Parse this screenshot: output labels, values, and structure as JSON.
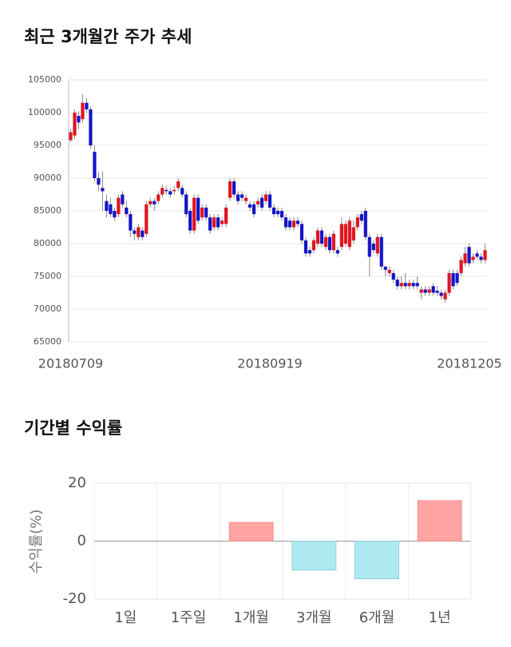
{
  "chart_data": [
    {
      "type": "candlestick",
      "title": "최근 3개월간 주가 추세",
      "categories": [
        "20180709",
        null,
        null,
        null,
        null,
        null,
        null,
        null,
        null,
        null,
        null,
        null,
        null,
        null,
        null,
        null,
        null,
        null,
        null,
        null,
        null,
        null,
        null,
        null,
        null,
        null,
        null,
        null,
        null,
        null,
        null,
        null,
        null,
        null,
        null,
        null,
        null,
        null,
        null,
        null,
        null,
        null,
        null,
        null,
        null,
        null,
        null,
        null,
        null,
        null,
        "20180919",
        null,
        null,
        null,
        null,
        null,
        null,
        null,
        null,
        null,
        null,
        null,
        null,
        null,
        null,
        null,
        null,
        null,
        null,
        null,
        null,
        null,
        null,
        null,
        null,
        null,
        null,
        null,
        null,
        null,
        null,
        null,
        null,
        null,
        null,
        null,
        null,
        null,
        null,
        null,
        null,
        null,
        null,
        null,
        null,
        null,
        null,
        null,
        null,
        null,
        null,
        null,
        null,
        null,
        "20181205"
      ],
      "open": [
        95800,
        96500,
        99500,
        99000,
        101500,
        100500,
        94000,
        90000,
        88500,
        86500,
        86000,
        85000,
        84500,
        87500,
        85500,
        84500,
        82000,
        81000,
        82000,
        81500,
        86000,
        86500,
        86500,
        87500,
        88200,
        88000,
        88000,
        88500,
        88500,
        87500,
        85000,
        82000,
        87000,
        84000,
        85500,
        84000,
        82500,
        84000,
        83000,
        83000,
        87000,
        89500,
        87500,
        87500,
        86500,
        86000,
        86000,
        86000,
        87000,
        86500,
        87500,
        85500,
        85000,
        85000,
        84000,
        83500,
        82500,
        83500,
        83000,
        80500,
        79000,
        79000,
        80000,
        82000,
        79500,
        81000,
        79000,
        79000,
        79500,
        80000,
        79500,
        80500,
        82500,
        84500,
        85000,
        81000,
        80000,
        78500,
        81000,
        76500,
        75500,
        75500,
        74500,
        73500,
        74000,
        73500,
        74000,
        74000,
        72500,
        73000,
        72500,
        73500,
        72800,
        72500,
        71500,
        72500,
        75500,
        75500,
        75500,
        77000,
        79500,
        77500,
        78500,
        78000,
        77500
      ],
      "high": [
        97500,
        100500,
        100200,
        102800,
        102200,
        101000,
        95000,
        91000,
        91000,
        87500,
        87000,
        85500,
        87500,
        88000,
        86500,
        85000,
        82500,
        83000,
        82500,
        86500,
        87000,
        87000,
        88000,
        89000,
        88800,
        88500,
        88800,
        90000,
        89000,
        88000,
        85500,
        87500,
        87500,
        86000,
        86000,
        84500,
        84500,
        84500,
        84000,
        86000,
        90000,
        90000,
        88000,
        88000,
        87500,
        86500,
        86500,
        87000,
        87500,
        88000,
        88000,
        86000,
        85500,
        85500,
        84500,
        84000,
        84000,
        84000,
        83500,
        81000,
        79500,
        81000,
        82500,
        82500,
        81500,
        81500,
        82000,
        79500,
        84000,
        83500,
        84000,
        83500,
        84500,
        85000,
        85500,
        81500,
        80500,
        81500,
        81500,
        76500,
        76500,
        76000,
        75000,
        75000,
        75500,
        74500,
        74500,
        75000,
        73500,
        73500,
        73500,
        74000,
        73500,
        73000,
        73000,
        76000,
        76000,
        76000,
        78000,
        79500,
        80000,
        78500,
        79000,
        78500,
        80000
      ],
      "low": [
        95500,
        96000,
        97500,
        98500,
        100000,
        94500,
        89500,
        88000,
        85000,
        84000,
        84000,
        83500,
        84000,
        85500,
        84000,
        81000,
        80500,
        80500,
        80500,
        81000,
        85500,
        85000,
        86000,
        87000,
        87500,
        87000,
        87500,
        88000,
        87000,
        84000,
        81500,
        81500,
        83000,
        83500,
        83500,
        81500,
        82000,
        82000,
        82500,
        82500,
        86500,
        87000,
        86000,
        86500,
        86000,
        85000,
        84000,
        85500,
        85000,
        86000,
        85000,
        84000,
        84000,
        83500,
        82000,
        82000,
        82000,
        82500,
        80000,
        78000,
        78000,
        78500,
        79500,
        79500,
        79000,
        78500,
        78500,
        78000,
        79000,
        79500,
        79000,
        80000,
        82000,
        83000,
        80500,
        75000,
        78500,
        78000,
        76000,
        75000,
        75000,
        74000,
        73000,
        73000,
        73000,
        73000,
        73000,
        73000,
        71500,
        72000,
        72000,
        72000,
        72000,
        71500,
        71000,
        72000,
        73000,
        73500,
        75000,
        76500,
        76500,
        77000,
        77500,
        77000,
        77000
      ],
      "close": [
        97000,
        100000,
        98500,
        101500,
        100500,
        95000,
        90000,
        89000,
        88000,
        85000,
        84500,
        84000,
        87000,
        86000,
        84500,
        82000,
        81500,
        82500,
        81000,
        86000,
        86500,
        86000,
        87500,
        88500,
        88000,
        87500,
        88200,
        89500,
        87500,
        84500,
        82000,
        87000,
        83500,
        85500,
        84000,
        82000,
        84000,
        82500,
        83500,
        85500,
        89500,
        87500,
        86500,
        87000,
        87000,
        85500,
        84500,
        86500,
        85500,
        87500,
        85500,
        84500,
        84500,
        84000,
        82500,
        82500,
        83500,
        83000,
        80500,
        78500,
        78500,
        80500,
        82000,
        80000,
        81000,
        79000,
        81500,
        78500,
        83000,
        83000,
        83500,
        82500,
        84000,
        83500,
        81000,
        78000,
        79000,
        81000,
        76500,
        76000,
        76000,
        74500,
        73500,
        74000,
        73500,
        74000,
        73500,
        73500,
        73000,
        72500,
        73000,
        72500,
        72500,
        72000,
        72500,
        75500,
        73500,
        74000,
        77500,
        78500,
        77000,
        78000,
        78000,
        77500,
        79000
      ],
      "up_color": "#e0141e",
      "down_color": "#1414c8",
      "ylim": [
        65000,
        105000
      ],
      "yticks": [
        65000,
        70000,
        75000,
        80000,
        85000,
        90000,
        95000,
        100000,
        105000
      ],
      "grid": true
    },
    {
      "type": "bar",
      "title": "기간별 수익률",
      "ylabel": "수익률(%)",
      "categories": [
        "1일",
        "1주일",
        "1개월",
        "3개월",
        "6개월",
        "1년"
      ],
      "values": [
        0,
        0,
        6.5,
        -10,
        -13,
        14
      ],
      "positive_color": "#ffa3a3",
      "negative_color": "#aee9f1",
      "ylim": [
        -20,
        20
      ],
      "yticks": [
        -20,
        0,
        20
      ],
      "grid": true
    }
  ]
}
